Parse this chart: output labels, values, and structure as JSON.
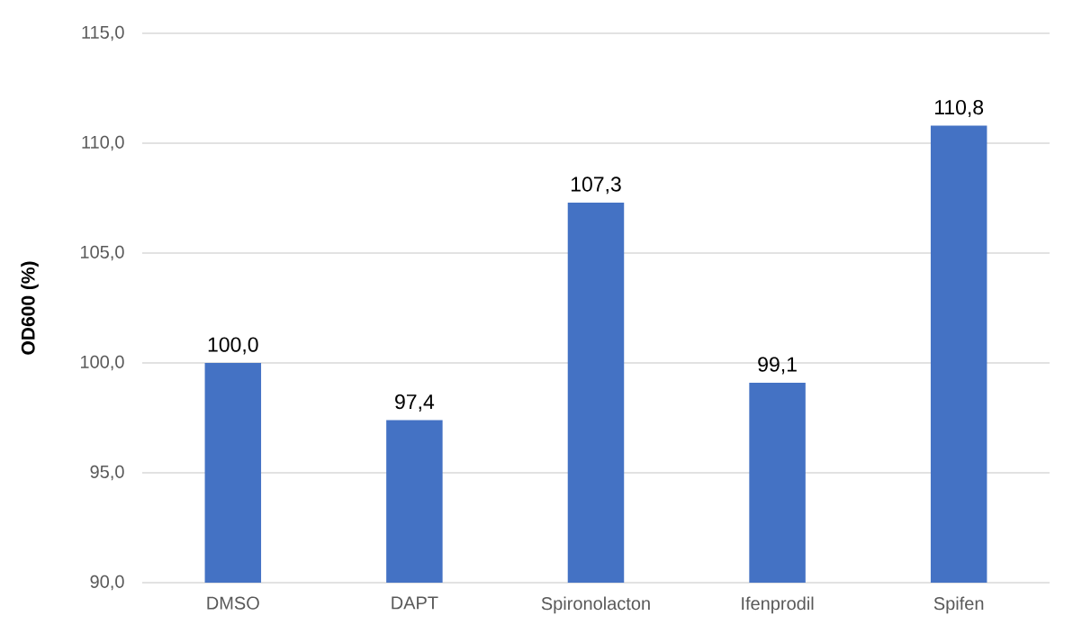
{
  "chart_data": {
    "type": "bar",
    "ylabel": "OD600 (%)",
    "categories": [
      "DMSO",
      "DAPT",
      "Spironolacton",
      "Ifenprodil",
      "Spifen"
    ],
    "values": [
      100.0,
      97.4,
      107.3,
      99.1,
      110.8
    ],
    "value_labels": [
      "100,0",
      "97,4",
      "107,3",
      "99,1",
      "110,8"
    ],
    "color": "#4472c4",
    "ylim": [
      90,
      115
    ],
    "yticks": [
      {
        "value": 90,
        "label": "90,0"
      },
      {
        "value": 95,
        "label": "95,0"
      },
      {
        "value": 100,
        "label": "100,0"
      },
      {
        "value": 105,
        "label": "105,0"
      },
      {
        "value": 110,
        "label": "110,0"
      },
      {
        "value": 115,
        "label": "115,0"
      }
    ],
    "grid": "y"
  }
}
